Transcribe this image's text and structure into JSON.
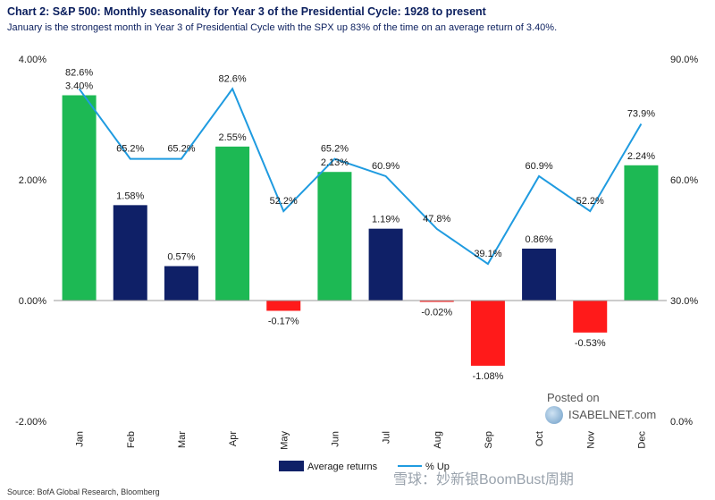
{
  "header": {
    "title": "Chart 2: S&P 500: Monthly seasonality for Year 3 of the Presidential Cycle: 1928 to present",
    "subtitle": "January is the strongest month in Year 3 of Presidential Cycle with the SPX up 83% of the time on an average return of 3.40%."
  },
  "footer": {
    "source": "Source: BofA Global Research, Bloomberg"
  },
  "watermarks": {
    "posted_on": "Posted on",
    "brand": "ISABELNET.com",
    "bottom": "雪球：妙新银BoomBust周期"
  },
  "colors": {
    "positive": "#1db954",
    "average": "#0f2067",
    "negative": "#ff1a1a",
    "line": "#1f9be0"
  },
  "chart_data": {
    "type": "bar",
    "categories": [
      "Jan",
      "Feb",
      "Mar",
      "Apr",
      "May",
      "Jun",
      "Jul",
      "Aug",
      "Sep",
      "Oct",
      "Nov",
      "Dec"
    ],
    "series": [
      {
        "name": "Average returns",
        "axis": "left",
        "values": [
          3.4,
          1.58,
          0.57,
          2.55,
          -0.17,
          2.13,
          1.19,
          -0.02,
          -1.08,
          0.86,
          -0.53,
          2.24
        ],
        "labels": [
          "3.40%",
          "1.58%",
          "0.57%",
          "2.55%",
          "-0.17%",
          "2.13%",
          "1.19%",
          "-0.02%",
          "-1.08%",
          "0.86%",
          "-0.53%",
          "2.24%"
        ],
        "highlight": [
          "Jan",
          "Apr",
          "Jun",
          "Dec"
        ]
      },
      {
        "name": "% Up",
        "axis": "right",
        "type": "line",
        "values": [
          82.6,
          65.2,
          65.2,
          82.6,
          52.2,
          65.2,
          60.9,
          47.8,
          39.1,
          60.9,
          52.2,
          73.9
        ],
        "labels": [
          "82.6%",
          "65.2%",
          "65.2%",
          "82.6%",
          "52.2%",
          "65.2%",
          "60.9%",
          "47.8%",
          "39.1%",
          "60.9%",
          "52.2%",
          "73.9%"
        ]
      }
    ],
    "left_axis": {
      "ylim": [
        -2.0,
        4.0
      ],
      "ticks": [
        4.0,
        2.0,
        0.0,
        -2.0
      ],
      "tick_labels": [
        "4.00%",
        "2.00%",
        "0.00%",
        "-2.00%"
      ]
    },
    "right_axis": {
      "ylim": [
        0.0,
        90.0
      ],
      "ticks": [
        90.0,
        60.0,
        30.0,
        0.0
      ],
      "tick_labels": [
        "90.0%",
        "60.0%",
        "30.0%",
        "0.0%"
      ]
    },
    "legend": {
      "placement": "bottom",
      "entries": [
        "Average returns",
        "% Up"
      ]
    },
    "grid": false
  }
}
